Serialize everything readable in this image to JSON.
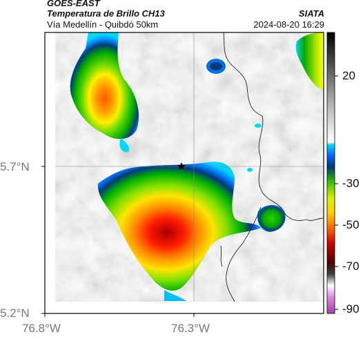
{
  "header": {
    "title": "GOES-EAST",
    "subtitle": "Temperatura de Brillo CH13",
    "region": "Vía Medellín - Quibdó 50km",
    "agency": "SIATA",
    "datetime": "2024-08-20 16:29"
  },
  "map": {
    "lat_labels": [
      "5.7°N",
      "5.2°N"
    ],
    "lon_labels": [
      "76.8°W",
      "76.3°W"
    ],
    "marker": "star-marker"
  },
  "colorbar": {
    "tick_labels": [
      "20",
      "-30",
      "-50",
      "-70",
      "-90"
    ],
    "colors": [
      "#000000",
      "#ffffff",
      "#00c8ff",
      "#00a000",
      "#ffff00",
      "#ff0000",
      "#7a0000",
      "#c040c0"
    ]
  }
}
